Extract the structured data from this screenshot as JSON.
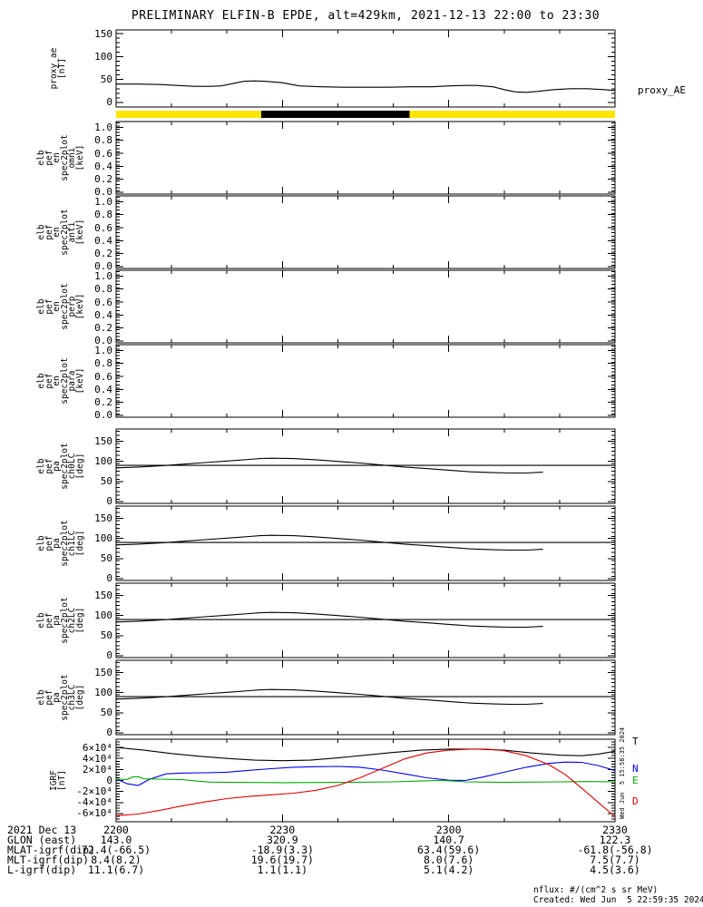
{
  "title": "PRELIMINARY ELFIN-B EPDE, alt=429km, 2021-12-13 22:00 to 23:30",
  "notes": {
    "units": "nflux: #/(cm^2 s sr MeV)",
    "created": "Created: Wed Jun  5 22:59:35 2024",
    "side_timestamp": "Wed Jun  5 15:58:35 2024"
  },
  "x_axis": {
    "t_min": 0,
    "t_max": 90,
    "major": [
      0,
      30,
      60,
      90
    ],
    "minor_step": 10,
    "tick_labels": [
      "2200",
      "2230",
      "2300",
      "2330"
    ]
  },
  "ephemeris": {
    "rows": [
      {
        "label": "2021 Dec 13",
        "values": [
          "2200",
          "2230",
          "2300",
          "2330"
        ]
      },
      {
        "label": "GLON (east)",
        "values": [
          "143.0",
          "320.9",
          "140.7",
          "122.3"
        ]
      },
      {
        "label": "MLAT-igrf(dip)",
        "values": [
          "72.4(-66.5)",
          "-18.9(3.3)",
          "63.4(59.6)",
          "-61.8(-56.8)"
        ]
      },
      {
        "label": "MLT-igrf(dip)",
        "values": [
          "8.4(8.2)",
          "19.6(19.7)",
          "8.0(7.6)",
          "7.5(7.7)"
        ]
      },
      {
        "label": "L-igrf(dip)",
        "values": [
          "11.1(6.7)",
          "1.1(1.1)",
          "5.1(4.2)",
          "4.5(3.6)"
        ]
      }
    ]
  },
  "chart_data": [
    {
      "id": "proxy_ae",
      "type": "line",
      "box": {
        "top": 33,
        "height": 85,
        "label_x": 56
      },
      "title_lines": [
        "proxy_ae",
        "[nT]"
      ],
      "right_label": "proxy_AE",
      "yrange": [
        -10,
        158
      ],
      "yminor": 10,
      "yticks": [
        {
          "v": 0,
          "l": "0"
        },
        {
          "v": 50,
          "l": "50"
        },
        {
          "v": 100,
          "l": "100"
        },
        {
          "v": 150,
          "l": "150"
        }
      ],
      "series": [
        {
          "name": "proxy_AE",
          "color": "#000000",
          "t": [
            0,
            4,
            8,
            11,
            14,
            17,
            19,
            21,
            23,
            25,
            27,
            30,
            33,
            37,
            41,
            45,
            49,
            53,
            57,
            60,
            63,
            65,
            68,
            70,
            72,
            74,
            76,
            79,
            82,
            85,
            88,
            90
          ],
          "v": [
            40,
            40,
            39,
            37,
            35,
            35,
            36,
            41,
            46,
            47,
            46,
            43,
            36,
            34,
            33,
            33,
            33,
            34,
            34,
            36,
            37,
            37,
            34,
            28,
            23,
            22,
            24,
            28,
            30,
            30,
            28,
            26
          ]
        }
      ]
    },
    {
      "id": "availability_bar",
      "type": "strip",
      "box": {
        "top": 122,
        "height": 8
      },
      "segments": [
        {
          "t0": 0,
          "t1": 26.2,
          "color": "#ffe400"
        },
        {
          "t0": 26.2,
          "t1": 52.9,
          "color": "#000000"
        },
        {
          "t0": 52.9,
          "t1": 90,
          "color": "#ffe400"
        }
      ]
    },
    {
      "id": "en_spec_omni",
      "type": "spectrogram",
      "box": {
        "top": 134,
        "height": 80,
        "label_x": 42
      },
      "title_lines": [
        "elb",
        "pef",
        "en",
        "spec2plot",
        "omni",
        "[keV]"
      ],
      "yrange": [
        -0.03,
        1.09
      ],
      "yminor": 0.05,
      "yticks": [
        {
          "v": 0.0,
          "l": "0.0"
        },
        {
          "v": 0.2,
          "l": "0.2"
        },
        {
          "v": 0.4,
          "l": "0.4"
        },
        {
          "v": 0.6,
          "l": "0.6"
        },
        {
          "v": 0.8,
          "l": "0.8"
        },
        {
          "v": 1.0,
          "l": "1.0"
        }
      ],
      "series": []
    },
    {
      "id": "en_spec_anti",
      "type": "spectrogram",
      "box": {
        "top": 216,
        "height": 80,
        "label_x": 42
      },
      "title_lines": [
        "elb",
        "pef",
        "en",
        "spec2plot",
        "anti",
        "[keV]"
      ],
      "yrange": [
        -0.03,
        1.09
      ],
      "yminor": 0.05,
      "yticks": [
        {
          "v": 0.0,
          "l": "0.0"
        },
        {
          "v": 0.2,
          "l": "0.2"
        },
        {
          "v": 0.4,
          "l": "0.4"
        },
        {
          "v": 0.6,
          "l": "0.6"
        },
        {
          "v": 0.8,
          "l": "0.8"
        },
        {
          "v": 1.0,
          "l": "1.0"
        }
      ],
      "series": []
    },
    {
      "id": "en_spec_perp",
      "type": "spectrogram",
      "box": {
        "top": 298,
        "height": 80,
        "label_x": 42
      },
      "title_lines": [
        "elb",
        "pef",
        "en",
        "spec2plot",
        "perp",
        "[keV]"
      ],
      "yrange": [
        -0.03,
        1.09
      ],
      "yminor": 0.05,
      "yticks": [
        {
          "v": 0.0,
          "l": "0.0"
        },
        {
          "v": 0.2,
          "l": "0.2"
        },
        {
          "v": 0.4,
          "l": "0.4"
        },
        {
          "v": 0.6,
          "l": "0.6"
        },
        {
          "v": 0.8,
          "l": "0.8"
        },
        {
          "v": 1.0,
          "l": "1.0"
        }
      ],
      "series": []
    },
    {
      "id": "en_spec_para",
      "type": "spectrogram",
      "box": {
        "top": 380,
        "height": 80,
        "label_x": 42
      },
      "title_lines": [
        "elb",
        "pef",
        "en",
        "spec2plot",
        "para",
        "[keV]"
      ],
      "yrange": [
        -0.03,
        1.09
      ],
      "yminor": 0.05,
      "yticks": [
        {
          "v": 0.0,
          "l": "0.0"
        },
        {
          "v": 0.2,
          "l": "0.2"
        },
        {
          "v": 0.4,
          "l": "0.4"
        },
        {
          "v": 0.6,
          "l": "0.6"
        },
        {
          "v": 0.8,
          "l": "0.8"
        },
        {
          "v": 1.0,
          "l": "1.0"
        }
      ],
      "series": []
    },
    {
      "id": "pa_spec_ch0LC",
      "type": "line",
      "box": {
        "top": 473,
        "height": 82,
        "label_x": 42
      },
      "title_lines": [
        "elb",
        "pef",
        "pa",
        "spec2plot",
        "ch0LC",
        "[deg]"
      ],
      "yrange": [
        -5,
        181
      ],
      "yminor": 10,
      "yticks": [
        {
          "v": 0,
          "l": "0"
        },
        {
          "v": 50,
          "l": "50"
        },
        {
          "v": 100,
          "l": "100"
        },
        {
          "v": 150,
          "l": "150"
        }
      ],
      "series": [
        {
          "name": "loss-cone",
          "color": "#000000",
          "t": [
            0,
            4,
            8,
            12,
            16,
            20,
            24,
            26,
            28,
            32,
            36,
            40,
            44,
            48,
            52,
            56,
            60,
            64,
            68,
            71,
            74,
            77
          ],
          "v": [
            84,
            86,
            89,
            93,
            97,
            101,
            105,
            107,
            108,
            107,
            104,
            100,
            96,
            91,
            86,
            82,
            78,
            74,
            72,
            71,
            71,
            73
          ]
        },
        {
          "name": "90deg-reference",
          "color": "#000000",
          "t": [
            0,
            90
          ],
          "v": [
            90,
            90
          ]
        }
      ]
    },
    {
      "id": "pa_spec_ch1LC",
      "type": "line",
      "box": {
        "top": 558,
        "height": 82,
        "label_x": 42
      },
      "title_lines": [
        "elb",
        "pef",
        "pa",
        "spec2plot",
        "ch1LC",
        "[deg]"
      ],
      "yrange": [
        -5,
        181
      ],
      "yminor": 10,
      "yticks": [
        {
          "v": 0,
          "l": "0"
        },
        {
          "v": 50,
          "l": "50"
        },
        {
          "v": 100,
          "l": "100"
        },
        {
          "v": 150,
          "l": "150"
        }
      ],
      "series": [
        {
          "name": "loss-cone",
          "color": "#000000",
          "t": [
            0,
            4,
            8,
            12,
            16,
            20,
            24,
            26,
            28,
            32,
            36,
            40,
            44,
            48,
            52,
            56,
            60,
            64,
            68,
            71,
            74,
            77
          ],
          "v": [
            84,
            86,
            89,
            93,
            97,
            101,
            105,
            107,
            108,
            107,
            104,
            100,
            96,
            91,
            86,
            82,
            78,
            74,
            72,
            71,
            71,
            73
          ]
        },
        {
          "name": "90deg-reference",
          "color": "#000000",
          "t": [
            0,
            90
          ],
          "v": [
            90,
            90
          ]
        }
      ]
    },
    {
      "id": "pa_spec_ch2LC",
      "type": "line",
      "box": {
        "top": 643,
        "height": 82,
        "label_x": 42
      },
      "title_lines": [
        "elb",
        "pef",
        "pa",
        "spec2plot",
        "ch2LC",
        "[deg]"
      ],
      "yrange": [
        -5,
        181
      ],
      "yminor": 10,
      "yticks": [
        {
          "v": 0,
          "l": "0"
        },
        {
          "v": 50,
          "l": "50"
        },
        {
          "v": 100,
          "l": "100"
        },
        {
          "v": 150,
          "l": "150"
        }
      ],
      "series": [
        {
          "name": "loss-cone",
          "color": "#000000",
          "t": [
            0,
            4,
            8,
            12,
            16,
            20,
            24,
            26,
            28,
            32,
            36,
            40,
            44,
            48,
            52,
            56,
            60,
            64,
            68,
            71,
            74,
            77
          ],
          "v": [
            84,
            86,
            89,
            93,
            97,
            101,
            105,
            107,
            108,
            107,
            104,
            100,
            96,
            91,
            86,
            82,
            78,
            74,
            72,
            71,
            71,
            73
          ]
        },
        {
          "name": "90deg-reference",
          "color": "#000000",
          "t": [
            0,
            90
          ],
          "v": [
            90,
            90
          ]
        }
      ]
    },
    {
      "id": "pa_spec_ch3LC",
      "type": "line",
      "box": {
        "top": 728,
        "height": 82,
        "label_x": 42
      },
      "title_lines": [
        "elb",
        "pef",
        "pa",
        "spec2plot",
        "ch3LC",
        "[deg]"
      ],
      "yrange": [
        -5,
        181
      ],
      "yminor": 10,
      "yticks": [
        {
          "v": 0,
          "l": "0"
        },
        {
          "v": 50,
          "l": "50"
        },
        {
          "v": 100,
          "l": "100"
        },
        {
          "v": 150,
          "l": "150"
        }
      ],
      "series": [
        {
          "name": "loss-cone",
          "color": "#000000",
          "t": [
            0,
            4,
            8,
            12,
            16,
            20,
            24,
            26,
            28,
            32,
            36,
            40,
            44,
            48,
            52,
            56,
            60,
            64,
            68,
            71,
            74,
            77
          ],
          "v": [
            84,
            86,
            89,
            93,
            97,
            101,
            105,
            107,
            108,
            107,
            104,
            100,
            96,
            91,
            86,
            82,
            78,
            74,
            72,
            71,
            71,
            73
          ]
        },
        {
          "name": "90deg-reference",
          "color": "#000000",
          "t": [
            0,
            90
          ],
          "v": [
            90,
            90
          ]
        }
      ]
    },
    {
      "id": "igrf",
      "type": "line",
      "box": {
        "top": 815,
        "height": 91,
        "label_x": 56
      },
      "title_lines": [
        "IGRF",
        "[nT]"
      ],
      "yrange": [
        -75000,
        75000
      ],
      "yminor": 5000,
      "yticks": [
        {
          "v": 60000,
          "l": "6×10⁴"
        },
        {
          "v": 40000,
          "l": "4×10⁴"
        },
        {
          "v": 20000,
          "l": "2×10⁴"
        },
        {
          "v": 0,
          "l": "0"
        },
        {
          "v": -20000,
          "l": "-2×10⁴"
        },
        {
          "v": -40000,
          "l": "-4×10⁴"
        },
        {
          "v": -60000,
          "l": "-6×10⁴"
        }
      ],
      "legend": [
        {
          "label": "T",
          "color": "#000000",
          "y": 811
        },
        {
          "label": "N",
          "color": "#0000ee",
          "y": 841
        },
        {
          "label": "E",
          "color": "#00aa00",
          "y": 854
        },
        {
          "label": "D",
          "color": "#dd0000",
          "y": 877
        }
      ],
      "series": [
        {
          "name": "T",
          "color": "#000000",
          "t": [
            0,
            5,
            10,
            15,
            20,
            25,
            30,
            35,
            40,
            45,
            50,
            55,
            60,
            65,
            70,
            75,
            80,
            84,
            87,
            90
          ],
          "v": [
            60000,
            55000,
            49000,
            44000,
            40000,
            37000,
            36000,
            37000,
            41000,
            46000,
            51000,
            55000,
            57000,
            57000,
            55000,
            50000,
            46000,
            45000,
            48000,
            53000
          ]
        },
        {
          "name": "N",
          "color": "#0000ee",
          "t": [
            0,
            2,
            4,
            6,
            9,
            12,
            16,
            20,
            24,
            28,
            32,
            36,
            40,
            44,
            48,
            52,
            56,
            60,
            63,
            66,
            70,
            74,
            78,
            81,
            84,
            87,
            90
          ],
          "v": [
            3000,
            -6000,
            -9000,
            2000,
            12000,
            13500,
            14000,
            15000,
            18500,
            21500,
            24000,
            25000,
            25500,
            24000,
            19000,
            12000,
            5000,
            500,
            0,
            6000,
            15000,
            24000,
            31000,
            33500,
            33000,
            27000,
            18000
          ]
        },
        {
          "name": "E",
          "color": "#00aa00",
          "t": [
            0,
            2,
            3,
            4,
            5,
            8,
            12,
            14,
            17,
            22,
            30,
            40,
            50,
            55,
            58,
            60,
            63,
            70,
            80,
            85,
            90
          ],
          "v": [
            2500,
            2000,
            6500,
            7000,
            3000,
            2500,
            1500,
            -500,
            -3000,
            -3500,
            -4000,
            -3500,
            -2500,
            -1000,
            0,
            -500,
            -2500,
            -3500,
            -2500,
            -2000,
            -2500
          ]
        },
        {
          "name": "D",
          "color": "#dd0000",
          "t": [
            0,
            4,
            8,
            12,
            16,
            20,
            24,
            28,
            32,
            36,
            40,
            44,
            48,
            52,
            56,
            60,
            64,
            67,
            70,
            74,
            78,
            81,
            84,
            87,
            90
          ],
          "v": [
            -64000,
            -61000,
            -54000,
            -46000,
            -39000,
            -33000,
            -29000,
            -26000,
            -23000,
            -18000,
            -9000,
            5000,
            22000,
            39000,
            50000,
            55000,
            57000,
            57000,
            54000,
            45000,
            29000,
            11000,
            -14000,
            -40000,
            -66000
          ]
        }
      ]
    }
  ]
}
